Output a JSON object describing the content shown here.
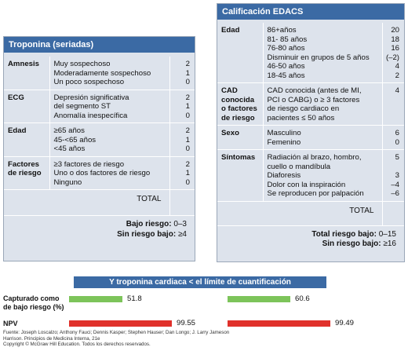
{
  "troponina": {
    "title": "Troponina (seriadas)",
    "rows": [
      {
        "category": "Amnesis",
        "items": [
          "Muy sospechoso",
          "Moderadamente sospechoso",
          "Un poco sospechoso"
        ],
        "points": [
          "2",
          "1",
          "0"
        ]
      },
      {
        "category": "ECG",
        "items": [
          "Depresión significativa",
          "del segmento  ST",
          "Anomalía inespecífica"
        ],
        "points": [
          "2",
          "1",
          "0"
        ]
      },
      {
        "category": "Edad",
        "items": [
          "≥65 años",
          "45-<65 años",
          "<45 años"
        ],
        "points": [
          "2",
          "1",
          "0"
        ]
      },
      {
        "category": "Factores de riesgo",
        "items": [
          "≥3 factores de riesgo",
          "Uno o dos factores de riesgo",
          "Ninguno"
        ],
        "points": [
          "2",
          "1",
          "0"
        ]
      }
    ],
    "total_label": "TOTAL",
    "bajo_riesgo_label": "Bajo riesgo:",
    "bajo_riesgo_value": "0–3",
    "sin_riesgo_label": "Sin riesgo bajo:",
    "sin_riesgo_value": "≥4"
  },
  "edacs": {
    "title": "Calificación EDACS",
    "rows": [
      {
        "category": "Edad",
        "items": [
          "86+años",
          "81- 85 años",
          "76-80 años",
          "Disminuir en grupos de 5 años",
          "46-50 años",
          "18-45 años"
        ],
        "points": [
          "20",
          "18",
          "16",
          "(–2)",
          "4",
          "2"
        ]
      },
      {
        "category": "CAD conocida o factores de riesgo",
        "items": [
          "CAD conocida (antes de MI,",
          "PCI o CABG) o ≥ 3 factores",
          "de riesgo cardiaco en",
          "pacientes ≤ 50 años"
        ],
        "points": [
          "4"
        ]
      },
      {
        "category": "Sexo",
        "items": [
          "Masculino",
          "Femenino"
        ],
        "points": [
          "6",
          "0"
        ]
      },
      {
        "category": "Síntomas",
        "items": [
          "Radiación al brazo, hombro,",
          "cuello o mandíbula",
          "Diaforesis",
          "Dolor con la inspiración",
          "Se reproducen por palpación"
        ],
        "points": [
          "5",
          "",
          "3",
          "–4",
          "–6"
        ]
      }
    ],
    "total_label": "TOTAL",
    "total_bajo_label": "Total riesgo bajo:",
    "total_bajo_value": "0–15",
    "sin_riesgo_label": "Sin riesgo bajo:",
    "sin_riesgo_value": "≥16"
  },
  "chart_data": {
    "type": "bar",
    "title": "Y troponina cardiaca < el límite de cuantificación",
    "categories": [
      "Capturado como de bajo riesgo (%)",
      "NPV"
    ],
    "series": [
      {
        "values": [
          51.8,
          99.55
        ],
        "labels": [
          "51.8",
          "99.55"
        ]
      },
      {
        "values": [
          60.6,
          99.49
        ],
        "labels": [
          "60.6",
          "99.49"
        ]
      }
    ],
    "colors": [
      "#7dc45a",
      "#e0312b"
    ]
  },
  "source": [
    "Fuente: Joseph Loscalzo; Anthony Fauci; Dennis Kasper; Stephen Hauser; Dan Longo; J. Larry Jameson",
    "Harrison. Principios de Medicina Interna, 21e",
    "Copyright © McGraw Hill Education. Todos los derechos reservados."
  ]
}
